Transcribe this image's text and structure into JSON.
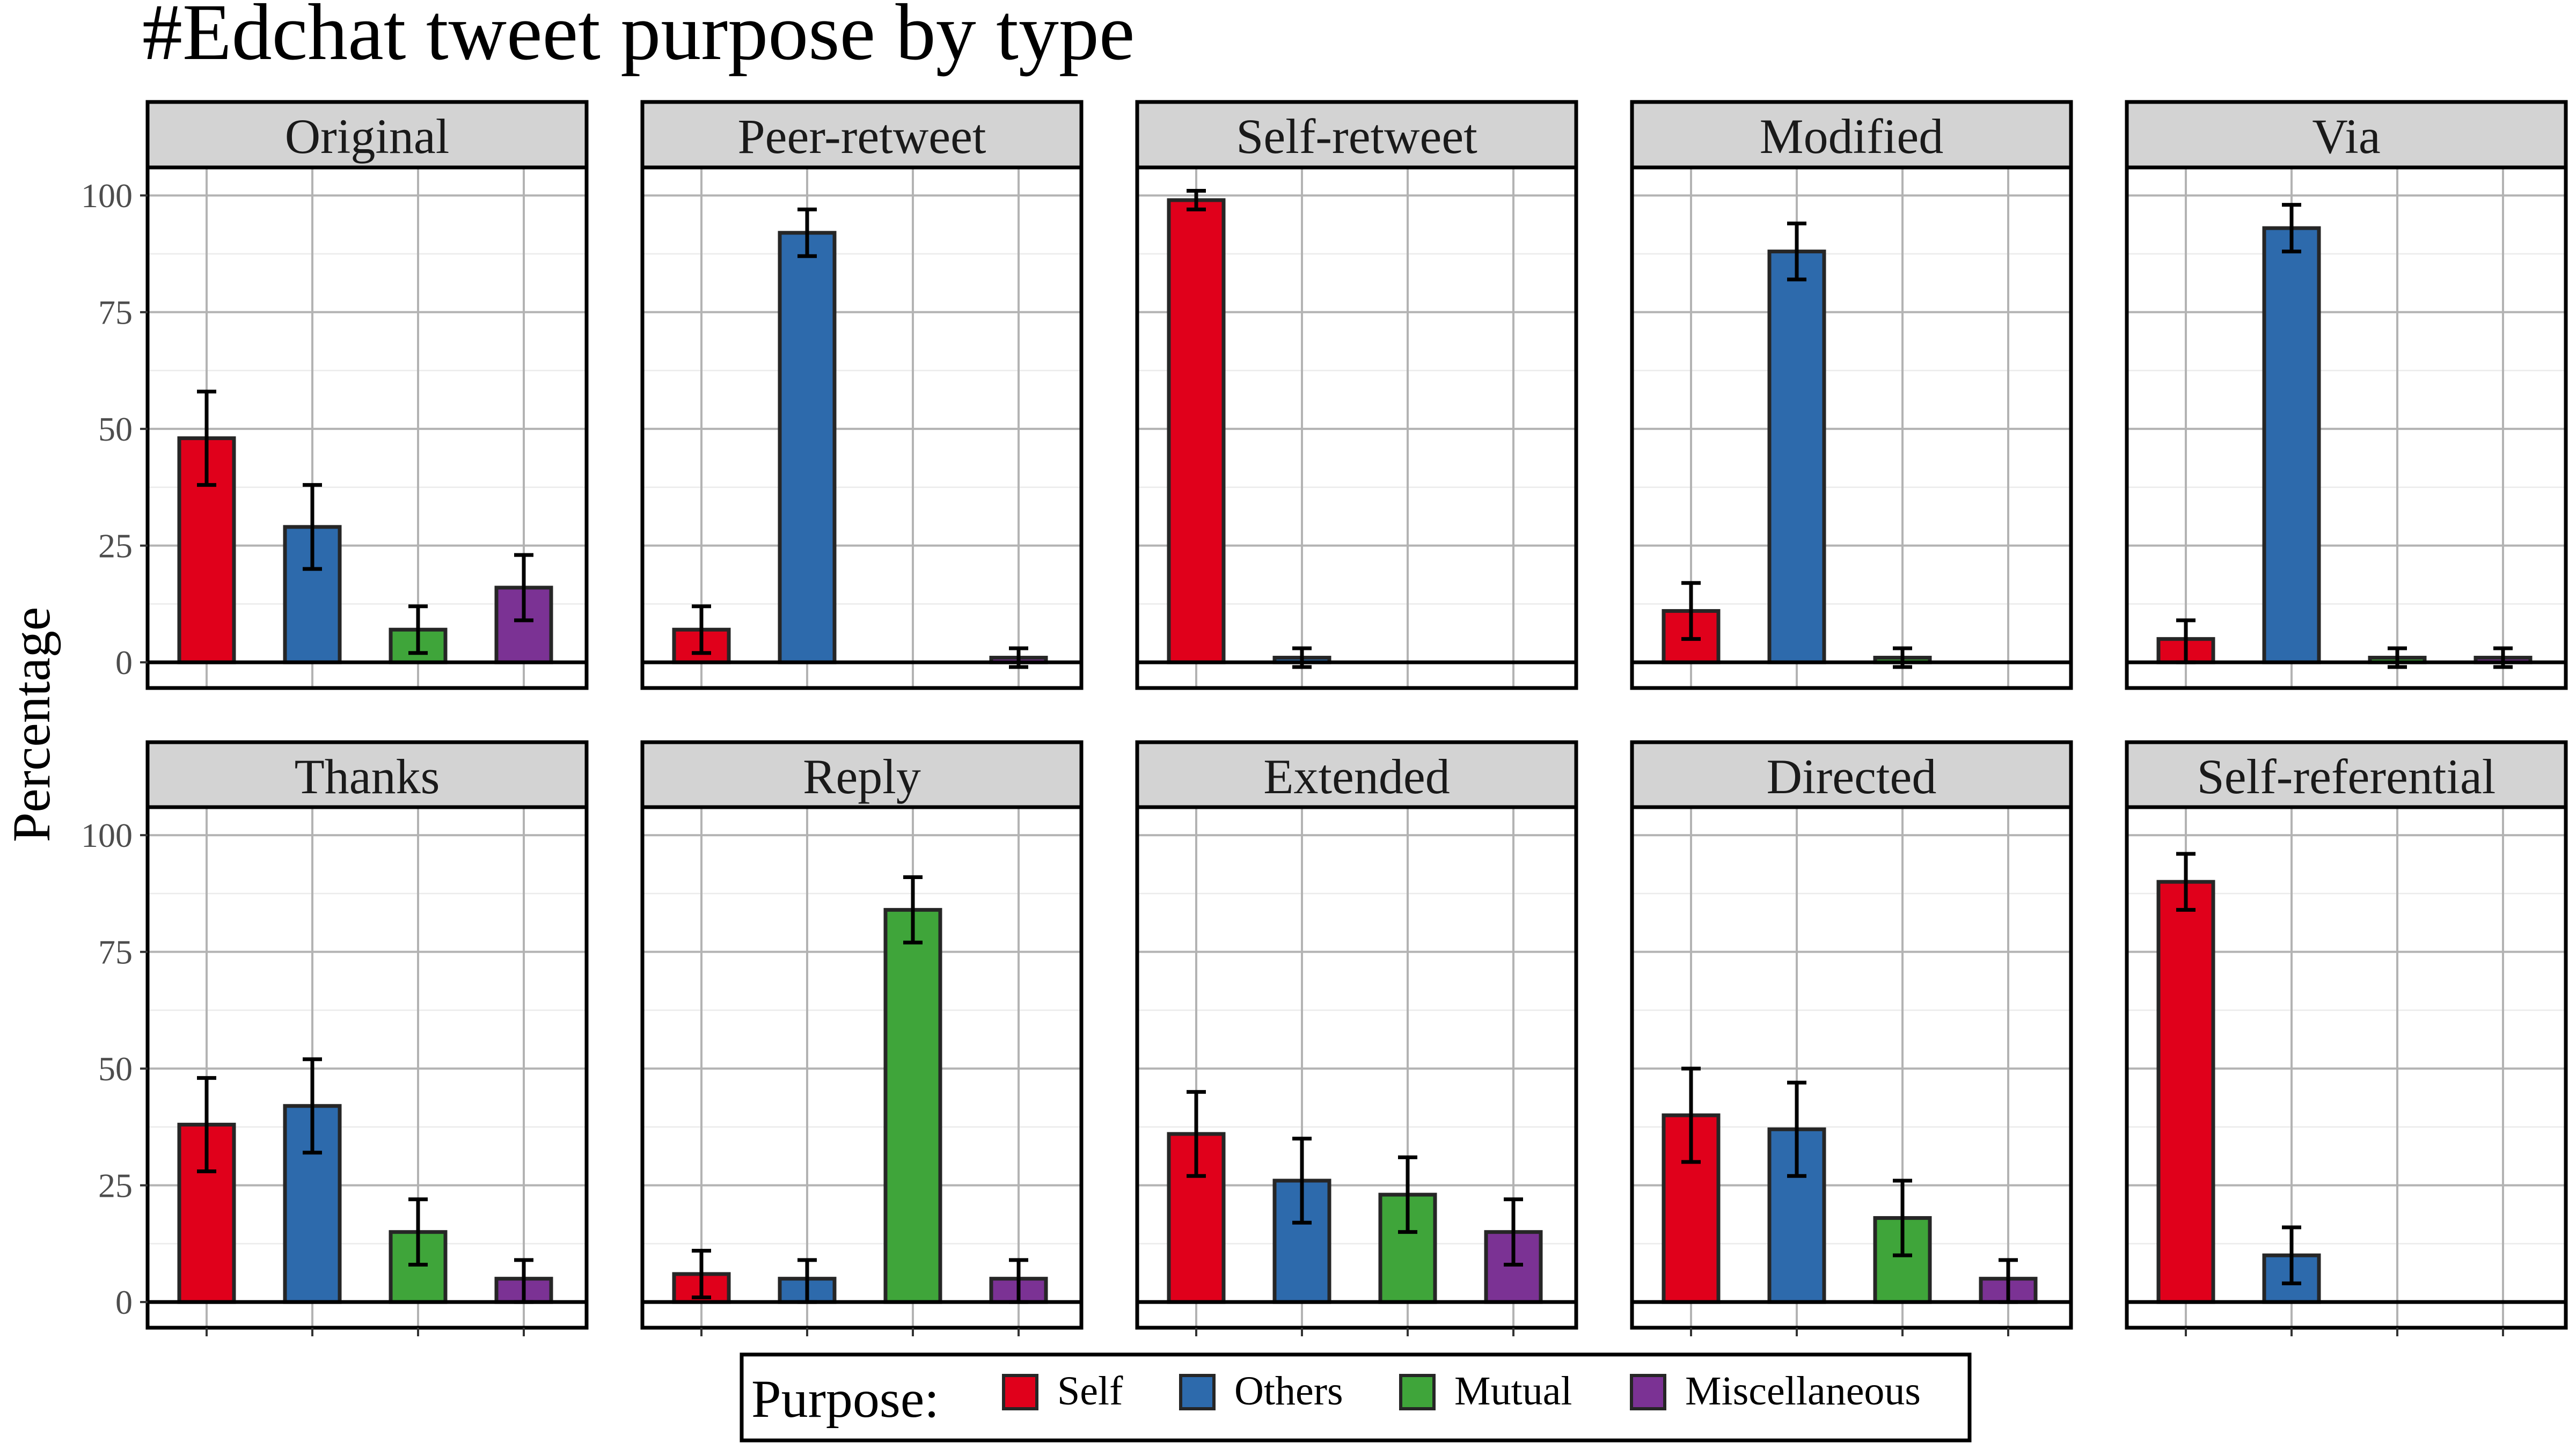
{
  "chart_data": {
    "type": "bar",
    "title": "#Edchat tweet purpose by type",
    "ylabel": "Percentage",
    "xlabel": "",
    "ylim": [
      -5.5,
      106
    ],
    "y_ticks": [
      0,
      25,
      50,
      75,
      100
    ],
    "grid": true,
    "legend": {
      "title": "Purpose:",
      "placement": "bottom",
      "entries": [
        "Self",
        "Others",
        "Mutual",
        "Miscellaneous"
      ]
    },
    "categories": [
      "Self",
      "Others",
      "Mutual",
      "Miscellaneous"
    ],
    "colors": {
      "Self": "#e0001b",
      "Others": "#2d6aac",
      "Mutual": "#3fa53a",
      "Miscellaneous": "#7b3294"
    },
    "panels": [
      {
        "name": "Original",
        "values": [
          48,
          29,
          7,
          16
        ],
        "err_low": [
          38,
          20,
          2,
          9
        ],
        "err_high": [
          58,
          38,
          12,
          23
        ]
      },
      {
        "name": "Peer-retweet",
        "values": [
          7,
          92,
          0,
          1
        ],
        "err_low": [
          2,
          87,
          null,
          -1
        ],
        "err_high": [
          12,
          97,
          null,
          3
        ]
      },
      {
        "name": "Self-retweet",
        "values": [
          99,
          1,
          0,
          0
        ],
        "err_low": [
          97,
          -1,
          null,
          null
        ],
        "err_high": [
          101,
          3,
          null,
          null
        ]
      },
      {
        "name": "Modified",
        "values": [
          11,
          88,
          1,
          0
        ],
        "err_low": [
          5,
          82,
          -1,
          null
        ],
        "err_high": [
          17,
          94,
          3,
          null
        ]
      },
      {
        "name": "Via",
        "values": [
          5,
          93,
          1,
          1
        ],
        "err_low": [
          0,
          88,
          -1,
          -1
        ],
        "err_high": [
          9,
          98,
          3,
          3
        ]
      },
      {
        "name": "Thanks",
        "values": [
          38,
          42,
          15,
          5
        ],
        "err_low": [
          28,
          32,
          8,
          0
        ],
        "err_high": [
          48,
          52,
          22,
          9
        ]
      },
      {
        "name": "Reply",
        "values": [
          6,
          5,
          84,
          5
        ],
        "err_low": [
          1,
          0,
          77,
          0
        ],
        "err_high": [
          11,
          9,
          91,
          9
        ]
      },
      {
        "name": "Extended",
        "values": [
          36,
          26,
          23,
          15
        ],
        "err_low": [
          27,
          17,
          15,
          8
        ],
        "err_high": [
          45,
          35,
          31,
          22
        ]
      },
      {
        "name": "Directed",
        "values": [
          40,
          37,
          18,
          5
        ],
        "err_low": [
          30,
          27,
          10,
          0
        ],
        "err_high": [
          50,
          47,
          26,
          9
        ]
      },
      {
        "name": "Self-referential",
        "values": [
          90,
          10,
          0,
          0
        ],
        "err_low": [
          84,
          4,
          null,
          null
        ],
        "err_high": [
          96,
          16,
          null,
          null
        ]
      }
    ]
  }
}
